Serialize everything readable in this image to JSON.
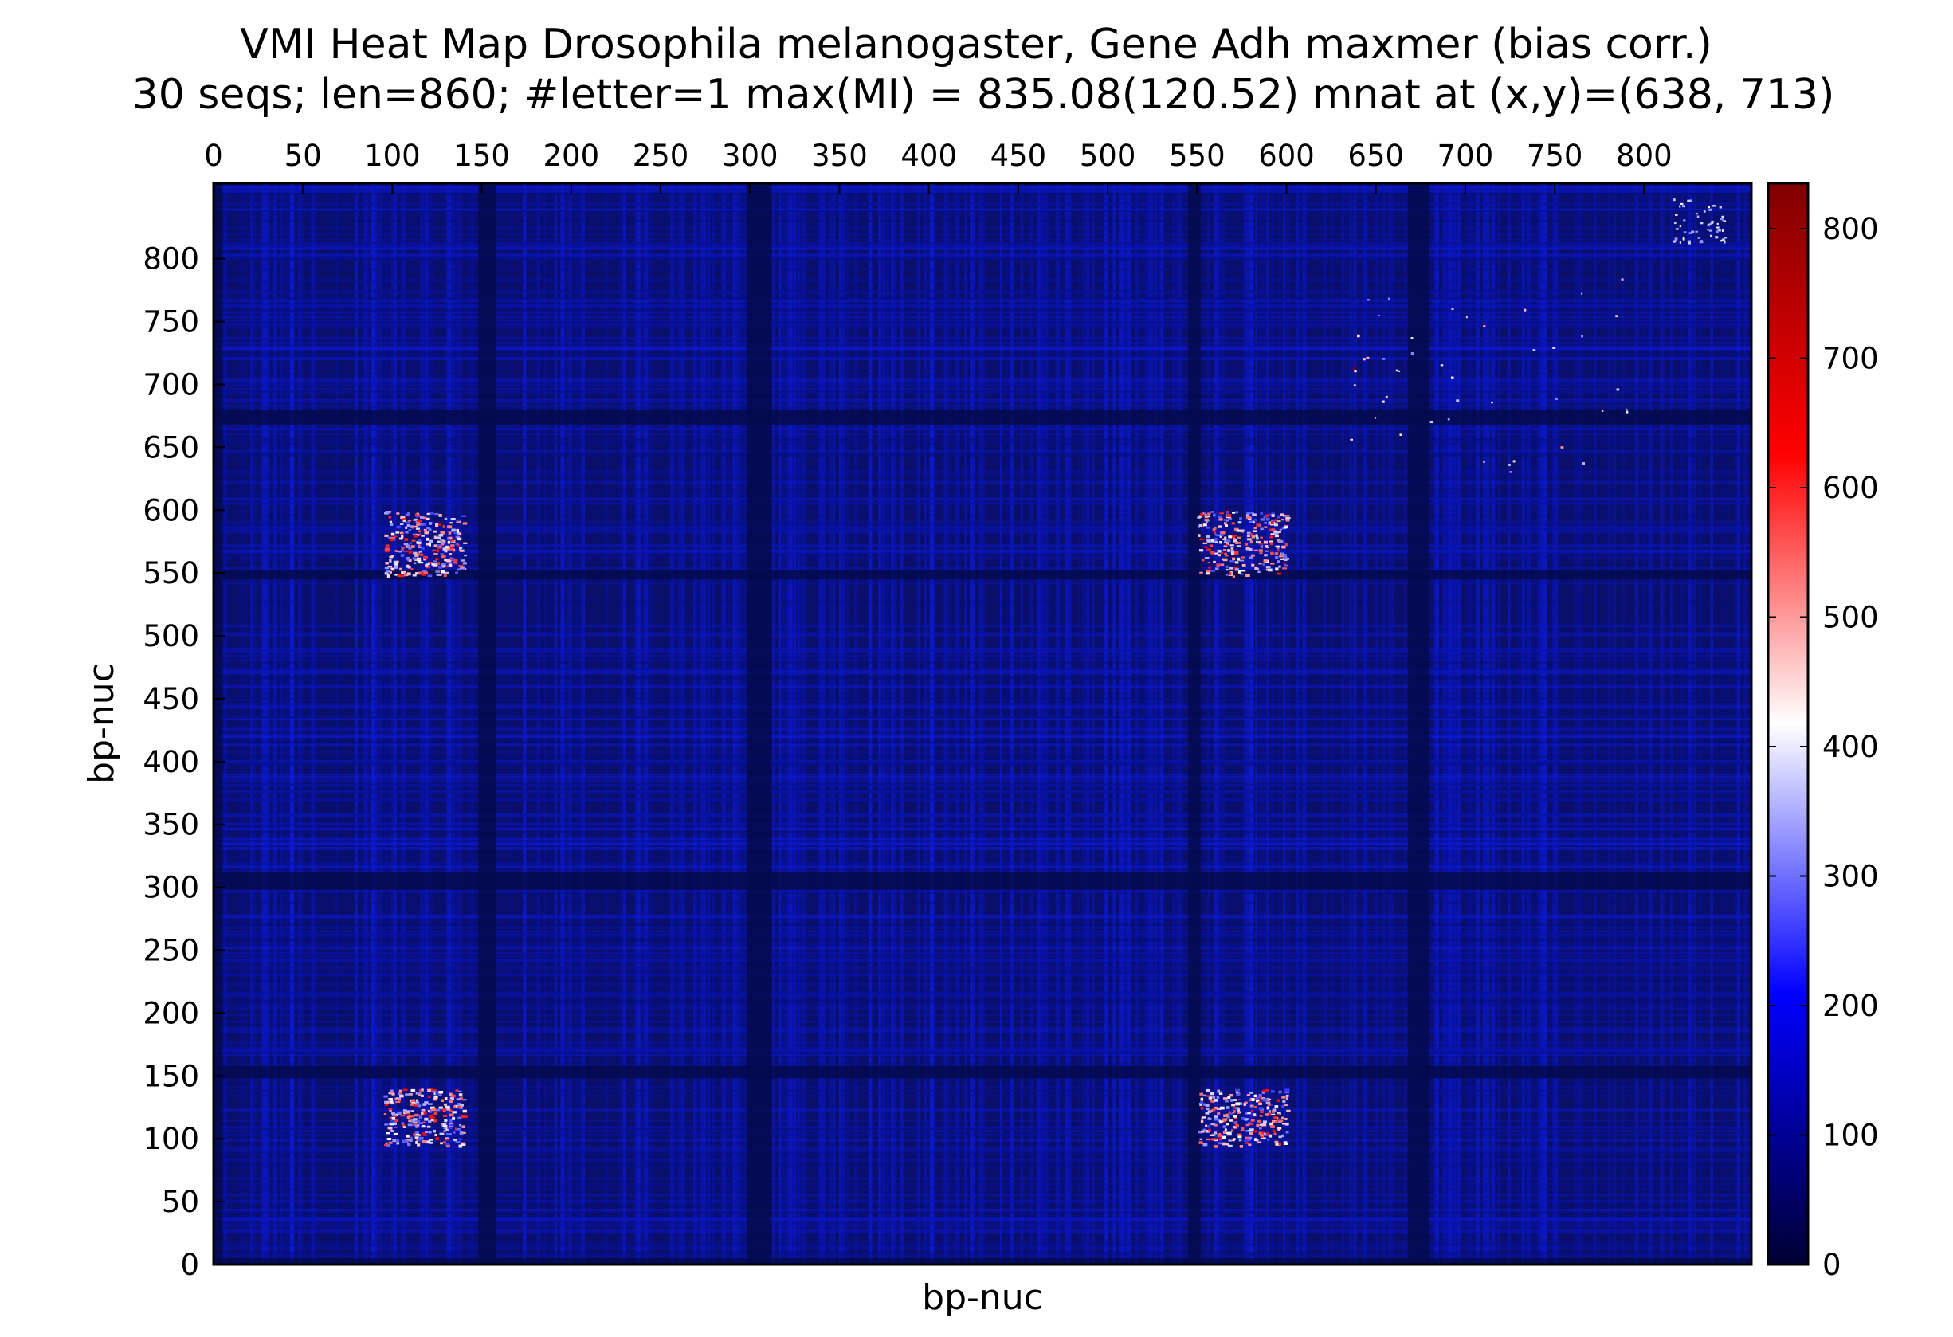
{
  "chart_data": {
    "type": "heatmap",
    "title": "VMI Heat Map Drosophila melanogaster, Gene Adh maxmer (bias corr.)",
    "subtitle": "30 seqs; len=860; #letter=1 max(MI) = 835.08(120.52) mnat at (x,y)=(638, 713)",
    "xlabel": "bp-nuc",
    "ylabel": "bp-nuc",
    "x_axis_position": "top",
    "xlim": [
      0,
      860
    ],
    "ylim": [
      0,
      860
    ],
    "x_ticks": [
      0,
      50,
      100,
      150,
      200,
      250,
      300,
      350,
      400,
      450,
      500,
      550,
      600,
      650,
      700,
      750,
      800
    ],
    "y_ticks": [
      0,
      50,
      100,
      150,
      200,
      250,
      300,
      350,
      400,
      450,
      500,
      550,
      600,
      650,
      700,
      750,
      800
    ],
    "colorbar": {
      "min": 0,
      "max": 835.08,
      "ticks": [
        0,
        100,
        200,
        300,
        400,
        500,
        600,
        700,
        800
      ],
      "colors": [
        "#000033",
        "#0000ff",
        "#ffffff",
        "#ff0000",
        "#800000"
      ]
    },
    "background_color": "#0a0f6a",
    "low_variability_bands": [
      [
        0,
        5
      ],
      [
        148,
        158
      ],
      [
        298,
        312
      ],
      [
        545,
        552
      ],
      [
        668,
        680
      ]
    ],
    "hotspots": [
      {
        "x": [
          95,
          140
        ],
        "y": [
          548,
          600
        ],
        "level": "high"
      },
      {
        "x": [
          550,
          600
        ],
        "y": [
          548,
          600
        ],
        "level": "high"
      },
      {
        "x": [
          95,
          140
        ],
        "y": [
          95,
          140
        ],
        "level": "high"
      },
      {
        "x": [
          550,
          600
        ],
        "y": [
          95,
          140
        ],
        "level": "high"
      },
      {
        "x": [
          815,
          845
        ],
        "y": [
          812,
          848
        ],
        "level": "medium"
      },
      {
        "x": [
          630,
          790
        ],
        "y": [
          625,
          785
        ],
        "level": "sparse"
      }
    ],
    "max_point": {
      "x": 638,
      "y": 713,
      "value": 835.08
    }
  }
}
